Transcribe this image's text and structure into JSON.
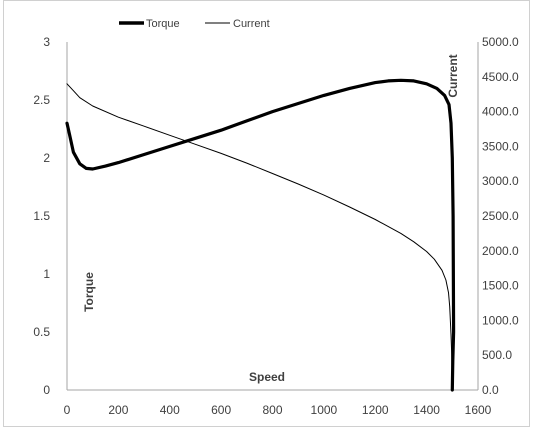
{
  "chart_data": {
    "type": "line",
    "xlabel": "Speed",
    "ylabel": "Torque",
    "y2label": "Current",
    "xlim": [
      0,
      1600
    ],
    "ylim": [
      0,
      3
    ],
    "y2lim": [
      0,
      5000
    ],
    "x_ticks": [
      "0",
      "200",
      "400",
      "600",
      "800",
      "1000",
      "1200",
      "1400",
      "1600"
    ],
    "y_ticks": [
      "0",
      "0.5",
      "1",
      "1.5",
      "2",
      "2.5",
      "3"
    ],
    "y2_ticks": [
      "0.0",
      "500.0",
      "1000.0",
      "1500.0",
      "2000.0",
      "2500.0",
      "3000.0",
      "3500.0",
      "4000.0",
      "4500.0",
      "5000.0"
    ],
    "grid": false,
    "legend_position": "top",
    "series": [
      {
        "name": "Torque",
        "axis": "left",
        "line_width": "thick",
        "color": "#000000",
        "points": [
          [
            0,
            2.3
          ],
          [
            10,
            2.2
          ],
          [
            25,
            2.05
          ],
          [
            50,
            1.95
          ],
          [
            75,
            1.91
          ],
          [
            100,
            1.905
          ],
          [
            150,
            1.93
          ],
          [
            200,
            1.96
          ],
          [
            300,
            2.03
          ],
          [
            400,
            2.1
          ],
          [
            500,
            2.17
          ],
          [
            600,
            2.24
          ],
          [
            700,
            2.32
          ],
          [
            800,
            2.4
          ],
          [
            900,
            2.47
          ],
          [
            1000,
            2.54
          ],
          [
            1100,
            2.6
          ],
          [
            1200,
            2.65
          ],
          [
            1250,
            2.665
          ],
          [
            1300,
            2.67
          ],
          [
            1350,
            2.665
          ],
          [
            1400,
            2.64
          ],
          [
            1440,
            2.6
          ],
          [
            1470,
            2.54
          ],
          [
            1487,
            2.46
          ],
          [
            1495,
            2.3
          ],
          [
            1500,
            2.0
          ],
          [
            1503,
            1.5
          ],
          [
            1505,
            0.5
          ],
          [
            1502,
            0.25
          ],
          [
            1500,
            0.0
          ]
        ]
      },
      {
        "name": "Current",
        "axis": "right",
        "line_width": "thin",
        "color": "#000000",
        "points": [
          [
            0,
            4400
          ],
          [
            25,
            4300
          ],
          [
            50,
            4200
          ],
          [
            100,
            4080
          ],
          [
            200,
            3920
          ],
          [
            300,
            3790
          ],
          [
            400,
            3660
          ],
          [
            500,
            3530
          ],
          [
            600,
            3400
          ],
          [
            700,
            3260
          ],
          [
            800,
            3110
          ],
          [
            900,
            2960
          ],
          [
            1000,
            2800
          ],
          [
            1100,
            2630
          ],
          [
            1200,
            2450
          ],
          [
            1300,
            2250
          ],
          [
            1350,
            2130
          ],
          [
            1400,
            1990
          ],
          [
            1430,
            1880
          ],
          [
            1460,
            1720
          ],
          [
            1475,
            1580
          ],
          [
            1485,
            1400
          ],
          [
            1490,
            1200
          ],
          [
            1495,
            800
          ],
          [
            1497,
            600
          ],
          [
            1498,
            400
          ],
          [
            1500,
            0
          ]
        ]
      }
    ]
  }
}
